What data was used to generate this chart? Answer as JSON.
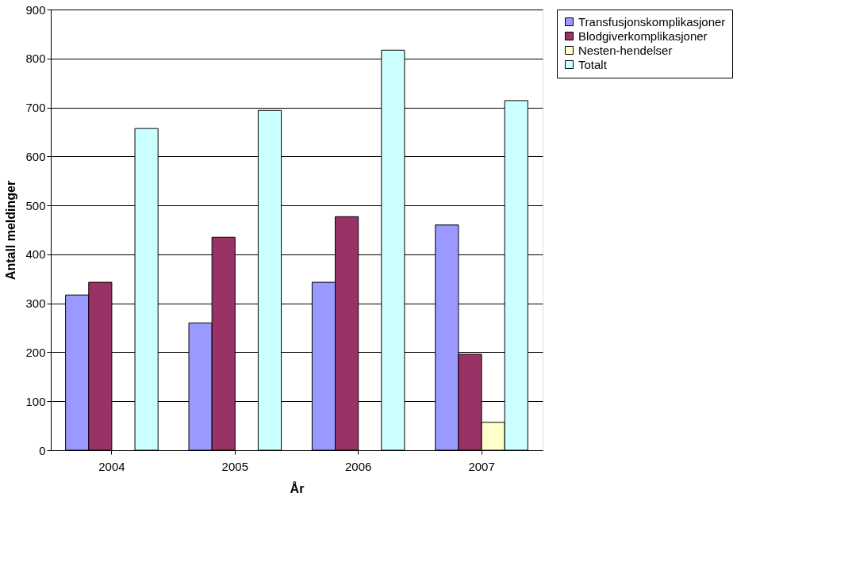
{
  "chart_data": {
    "type": "bar",
    "xlabel": "År",
    "ylabel": "Antall meldinger",
    "categories": [
      "2004",
      "2005",
      "2006",
      "2007"
    ],
    "series": [
      {
        "name": "Transfusjonskomplikasjoner",
        "color": "#9999ff",
        "values": [
          317,
          260,
          343,
          460
        ]
      },
      {
        "name": "Blodgiverkomplikasjoner",
        "color": "#993366",
        "values": [
          343,
          435,
          477,
          196
        ]
      },
      {
        "name": "Nesten-hendelser",
        "color": "#ffffcc",
        "values": [
          null,
          null,
          null,
          57
        ]
      },
      {
        "name": "Totalt",
        "color": "#ccffff",
        "values": [
          657,
          694,
          817,
          714
        ]
      }
    ],
    "ylim": [
      0,
      900
    ],
    "yticks": [
      0,
      100,
      200,
      300,
      400,
      500,
      600,
      700,
      800,
      900
    ],
    "grid": "y",
    "legend": "right"
  }
}
